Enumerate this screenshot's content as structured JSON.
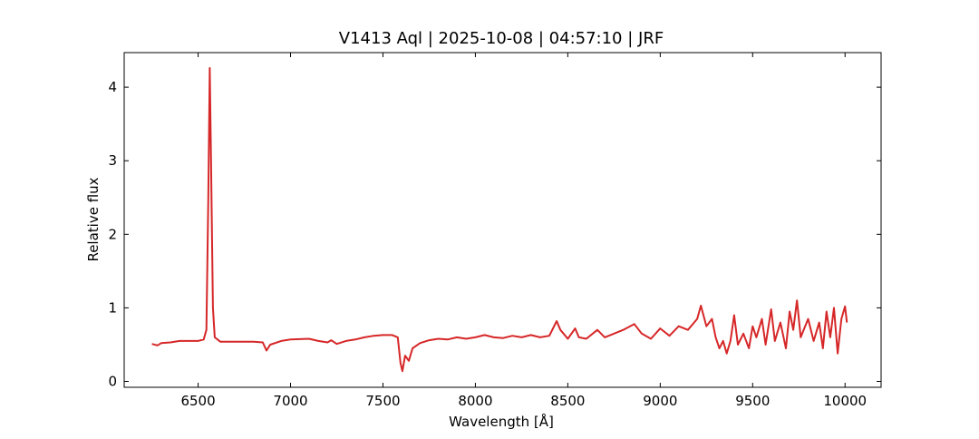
{
  "chart_data": {
    "type": "line",
    "title": "V1413 Aql | 2025-10-08 | 04:57:10 | JRF",
    "x_label": "Wavelength [Å]",
    "y_label": "Relative flux",
    "x": [
      6250,
      6280,
      6300,
      6350,
      6400,
      6450,
      6500,
      6530,
      6545,
      6555,
      6563,
      6570,
      6580,
      6590,
      6620,
      6700,
      6800,
      6850,
      6870,
      6890,
      6950,
      7000,
      7100,
      7150,
      7200,
      7220,
      7250,
      7300,
      7350,
      7400,
      7450,
      7500,
      7550,
      7580,
      7595,
      7605,
      7620,
      7640,
      7660,
      7700,
      7750,
      7800,
      7850,
      7900,
      7950,
      8000,
      8050,
      8100,
      8150,
      8200,
      8250,
      8300,
      8350,
      8400,
      8440,
      8460,
      8500,
      8540,
      8560,
      8600,
      8660,
      8700,
      8750,
      8800,
      8860,
      8900,
      8950,
      9000,
      9050,
      9100,
      9150,
      9200,
      9220,
      9250,
      9280,
      9300,
      9320,
      9340,
      9360,
      9380,
      9400,
      9420,
      9450,
      9480,
      9500,
      9520,
      9550,
      9570,
      9600,
      9620,
      9650,
      9680,
      9700,
      9720,
      9740,
      9760,
      9800,
      9830,
      9860,
      9880,
      9900,
      9920,
      9940,
      9960,
      9980,
      10000,
      10010
    ],
    "series": [
      {
        "name": "V1413 Aql",
        "color": "#d62728",
        "values": [
          0.51,
          0.49,
          0.52,
          0.53,
          0.55,
          0.55,
          0.55,
          0.57,
          0.7,
          2.5,
          4.26,
          3.0,
          1.0,
          0.6,
          0.54,
          0.54,
          0.54,
          0.53,
          0.42,
          0.5,
          0.55,
          0.57,
          0.58,
          0.55,
          0.53,
          0.56,
          0.51,
          0.55,
          0.57,
          0.6,
          0.62,
          0.63,
          0.63,
          0.6,
          0.25,
          0.14,
          0.35,
          0.28,
          0.45,
          0.52,
          0.56,
          0.58,
          0.57,
          0.6,
          0.58,
          0.6,
          0.63,
          0.6,
          0.59,
          0.62,
          0.6,
          0.63,
          0.6,
          0.62,
          0.82,
          0.7,
          0.58,
          0.72,
          0.6,
          0.58,
          0.7,
          0.6,
          0.65,
          0.7,
          0.78,
          0.65,
          0.58,
          0.72,
          0.62,
          0.75,
          0.7,
          0.85,
          1.03,
          0.75,
          0.85,
          0.6,
          0.45,
          0.55,
          0.38,
          0.55,
          0.9,
          0.5,
          0.65,
          0.45,
          0.75,
          0.6,
          0.85,
          0.5,
          0.98,
          0.55,
          0.8,
          0.45,
          0.95,
          0.7,
          1.1,
          0.6,
          0.85,
          0.55,
          0.8,
          0.45,
          0.95,
          0.6,
          1.0,
          0.38,
          0.85,
          1.02,
          0.8
        ]
      }
    ],
    "xlim": [
      6100,
      10195
    ],
    "xticks": [
      6500,
      7000,
      7500,
      8000,
      8500,
      9000,
      9500,
      10000
    ],
    "ylim": [
      -0.08,
      4.47
    ],
    "yticks": [
      0,
      1,
      2,
      3,
      4
    ]
  }
}
